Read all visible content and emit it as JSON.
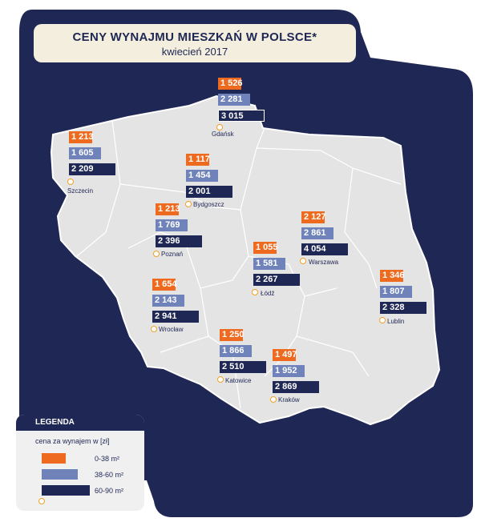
{
  "title": "CENY WYNAJMU MIESZKAŃ W POLSCE*",
  "subtitle": "kwiecień 2017",
  "colors": {
    "small": "#ee6a1f",
    "mid": "#6f83ba",
    "large": "#1f2755",
    "pin": "#f2a023",
    "background": "#1f2755",
    "map": "#e4e4e4"
  },
  "cities": [
    {
      "name": "Gdańsk",
      "small": "1 526",
      "mid": "2 281",
      "large": "3 015"
    },
    {
      "name": "Szczecin",
      "small": "1 213",
      "mid": "1 605",
      "large": "2 209"
    },
    {
      "name": "Bydgoszcz",
      "small": "1 117",
      "mid": "1 454",
      "large": "2 001"
    },
    {
      "name": "Poznań",
      "small": "1 213",
      "mid": "1 769",
      "large": "2 396"
    },
    {
      "name": "Warszawa",
      "small": "2 127",
      "mid": "2 861",
      "large": "4 054"
    },
    {
      "name": "Łódź",
      "small": "1 055",
      "mid": "1 581",
      "large": "2 267"
    },
    {
      "name": "Lublin",
      "small": "1 346",
      "mid": "1 807",
      "large": "2 328"
    },
    {
      "name": "Wrocław",
      "small": "1 654",
      "mid": "2 143",
      "large": "2 941"
    },
    {
      "name": "Katowice",
      "small": "1 250",
      "mid": "1 866",
      "large": "2 510"
    },
    {
      "name": "Kraków",
      "small": "1 497",
      "mid": "1 952",
      "large": "2 869"
    }
  ],
  "legend": {
    "title": "LEGENDA",
    "subtitle": "cena za wynajem w [zł]",
    "small_label": "0-38 m²",
    "mid_label": "38-60 m²",
    "large_label": "60-90 m²"
  }
}
